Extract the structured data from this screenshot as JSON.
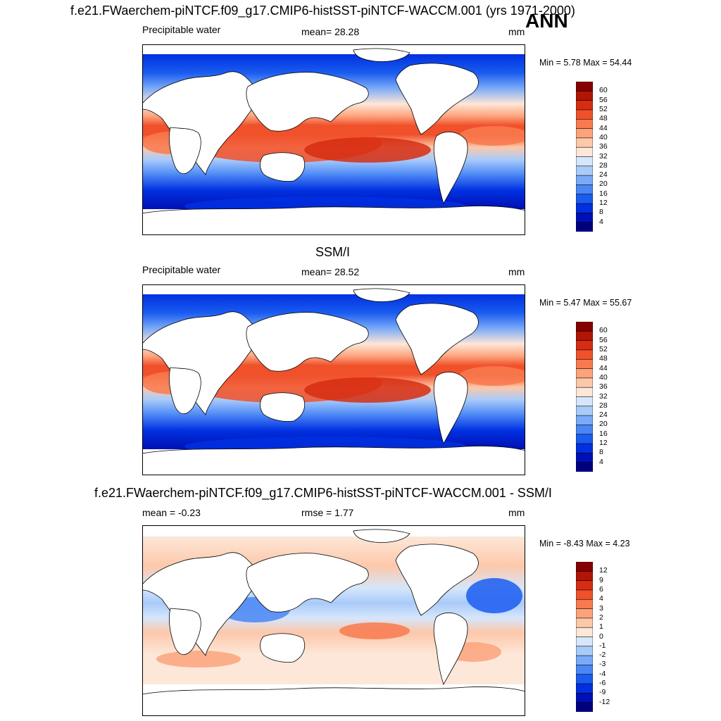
{
  "figure": {
    "main_title": "f.e21.FWaerchem-piNTCF.f09_g17.CMIP6-histSST-piNTCF-WACCM.001 (yrs 1971-2000)",
    "season": "ANN"
  },
  "colors": {
    "abs_scale": [
      "#00007f",
      "#0010b4",
      "#0030e0",
      "#1a5cf0",
      "#4a86f5",
      "#7aaaf8",
      "#a9cbfa",
      "#d6e6fb",
      "#fde7d8",
      "#fdc8aa",
      "#fca37c",
      "#f87a4f",
      "#f0512b",
      "#d62d12",
      "#b01505",
      "#850000"
    ],
    "diff_scale": [
      "#00007f",
      "#0010b4",
      "#0030e0",
      "#1a5cf0",
      "#4a86f5",
      "#7aaaf8",
      "#a9cbfa",
      "#d6e6fb",
      "#fde7d8",
      "#fdc8aa",
      "#fca37c",
      "#f87a4f",
      "#f0512b",
      "#d62d12",
      "#b01505",
      "#850000"
    ]
  },
  "chart_data": [
    {
      "type": "heatmap",
      "title": "",
      "variable": "Precipitable water",
      "mean_label": "mean=  28.28",
      "units": "mm",
      "min_max": "Min =   5.78 Max =  54.44",
      "colorbar_levels": [
        "60",
        "56",
        "52",
        "48",
        "44",
        "40",
        "36",
        "32",
        "28",
        "24",
        "20",
        "16",
        "12",
        "8",
        "4"
      ],
      "min": 5.78,
      "max": 54.44,
      "mean": 28.28
    },
    {
      "type": "heatmap",
      "title": "SSM/I",
      "variable": "Precipitable water",
      "mean_label": "mean=  28.52",
      "units": "mm",
      "min_max": "Min =   5.47 Max =  55.67",
      "colorbar_levels": [
        "60",
        "56",
        "52",
        "48",
        "44",
        "40",
        "36",
        "32",
        "28",
        "24",
        "20",
        "16",
        "12",
        "8",
        "4"
      ],
      "min": 5.47,
      "max": 55.67,
      "mean": 28.52
    },
    {
      "type": "heatmap",
      "title": "f.e21.FWaerchem-piNTCF.f09_g17.CMIP6-histSST-piNTCF-WACCM.001 - SSM/I",
      "variable": "mean =  -0.23",
      "rmse_label": "rmse =   1.77",
      "units": "mm",
      "min_max": "Min =  -8.43 Max =   4.23",
      "colorbar_levels": [
        "12",
        "9",
        "6",
        "4",
        "3",
        "2",
        "1",
        "0",
        "-1",
        "-2",
        "-3",
        "-4",
        "-6",
        "-9",
        "-12"
      ],
      "min": -8.43,
      "max": 4.23,
      "mean": -0.23,
      "rmse": 1.77
    }
  ]
}
